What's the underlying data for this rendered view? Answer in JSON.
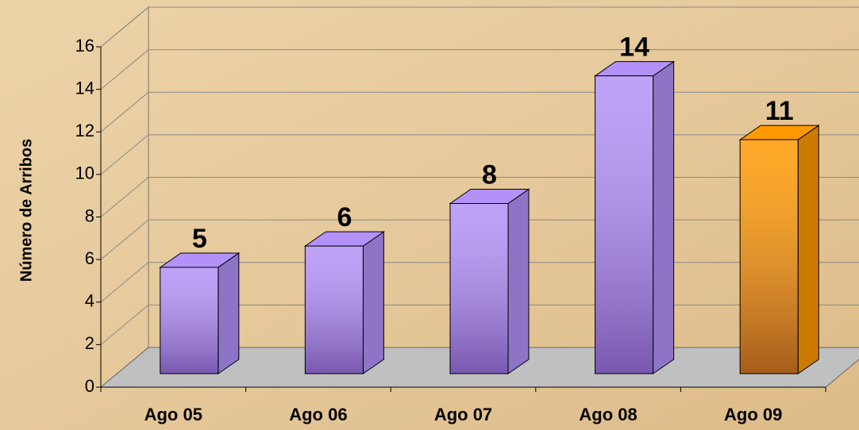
{
  "chart_data": {
    "type": "bar3d",
    "y_label": "Número de Arribos",
    "categories": [
      "Ago 05",
      "Ago 06",
      "Ago 07",
      "Ago 08",
      "Ago 09"
    ],
    "values": [
      5,
      6,
      8,
      14,
      11
    ],
    "colors": [
      "#b292f8",
      "#b292f8",
      "#b292f8",
      "#b292f8",
      "#ff9a00"
    ],
    "ylim": [
      0,
      16
    ],
    "yticks": [
      0,
      2,
      4,
      6,
      8,
      10,
      12,
      14,
      16
    ],
    "grid": true
  }
}
